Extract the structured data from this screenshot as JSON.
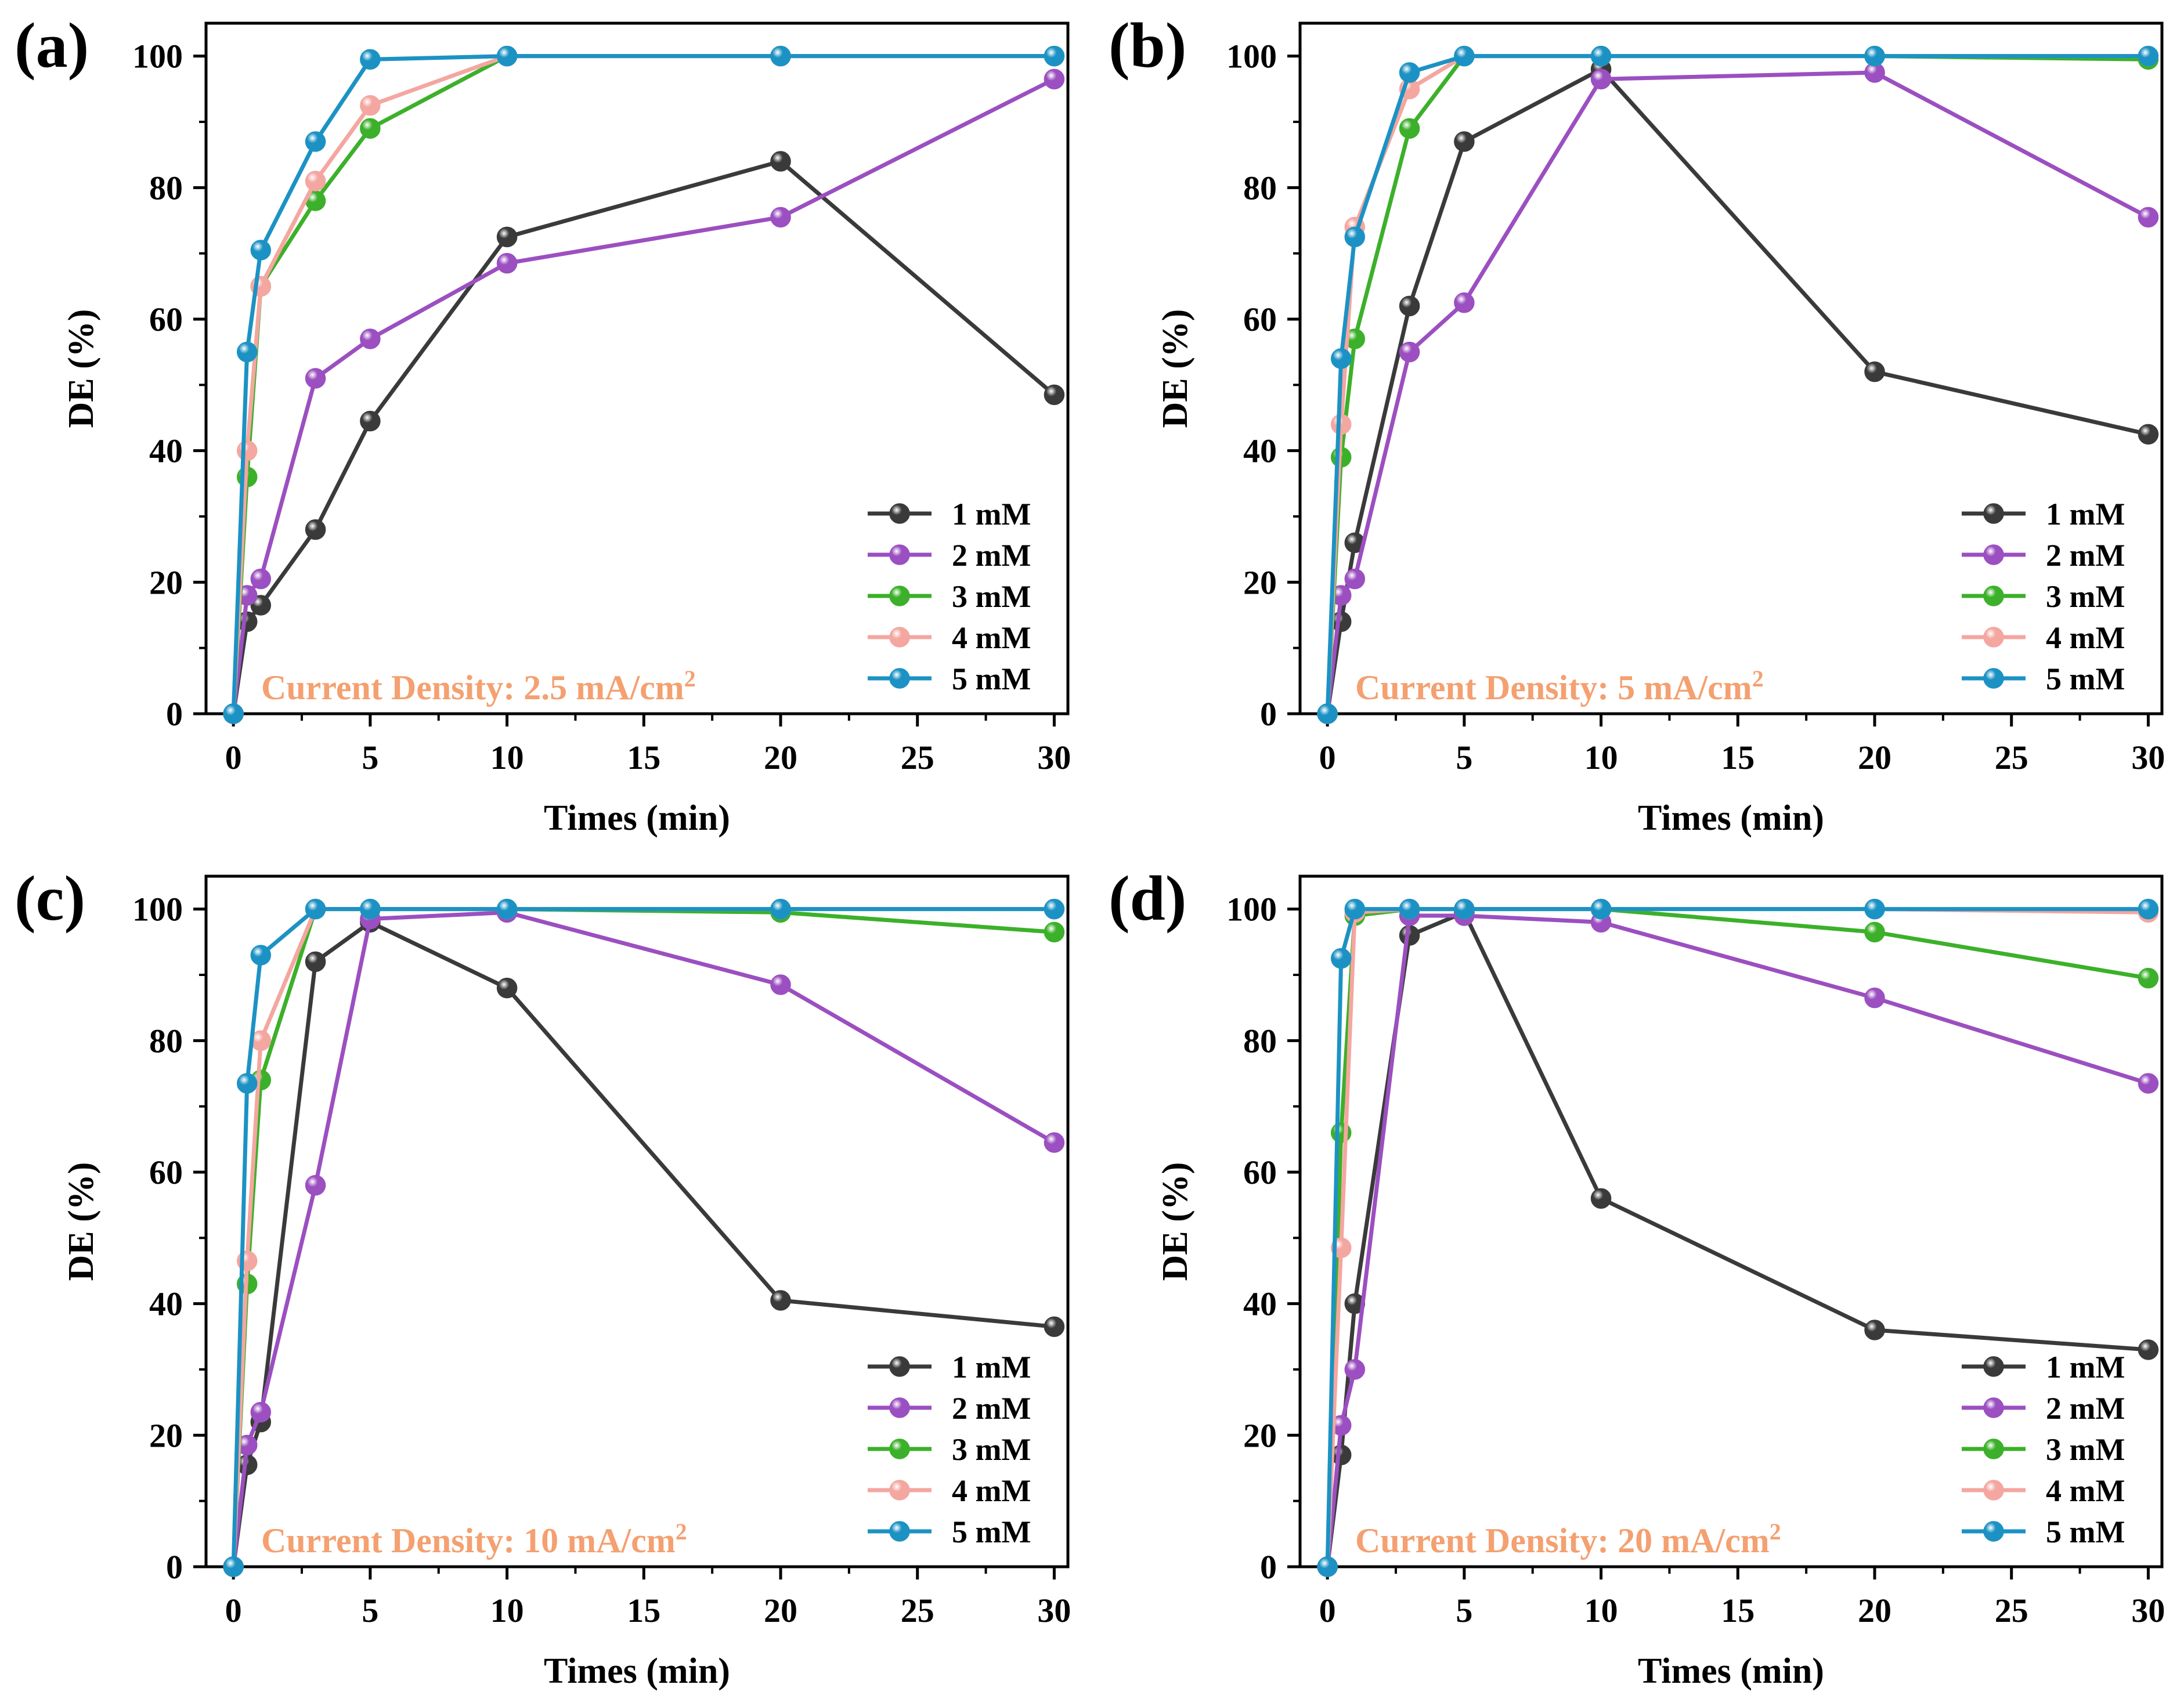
{
  "colors": {
    "1 mM": "#3a3a3a",
    "2 mM": "#9b4fc0",
    "3 mM": "#3cb02a",
    "4 mM": "#f4a6a0",
    "5 mM": "#1c92c4",
    "annotation": "#f4a070"
  },
  "chart_data": [
    {
      "type": "line",
      "panel": "(a)",
      "annotation": "Current Density: 2.5 mA/cm",
      "annotation_sup": "2",
      "xlabel": "Times (min)",
      "ylabel": "DE (%)",
      "xlim": [
        -1,
        30.5
      ],
      "ylim": [
        0,
        105
      ],
      "xticks": [
        0,
        5,
        10,
        15,
        20,
        25,
        30
      ],
      "yticks": [
        0,
        20,
        40,
        60,
        80,
        100
      ],
      "x": [
        0,
        0.5,
        1,
        3,
        5,
        10,
        20,
        30
      ],
      "series": [
        {
          "name": "1 mM",
          "values": [
            0,
            14,
            16.5,
            28,
            44.5,
            72.5,
            84,
            48.5
          ]
        },
        {
          "name": "2 mM",
          "values": [
            0,
            18,
            20.5,
            51,
            57,
            68.5,
            75.5,
            96.5
          ]
        },
        {
          "name": "3 mM",
          "values": [
            0,
            36,
            65,
            78,
            89,
            100,
            100,
            100
          ]
        },
        {
          "name": "4 mM",
          "values": [
            0,
            40,
            65,
            81,
            92.5,
            100,
            100,
            100
          ]
        },
        {
          "name": "5 mM",
          "values": [
            0,
            55,
            70.5,
            87,
            99.5,
            100,
            100,
            100
          ]
        }
      ]
    },
    {
      "type": "line",
      "panel": "(b)",
      "annotation": "Current Density: 5 mA/cm",
      "annotation_sup": "2",
      "xlabel": "Times (min)",
      "ylabel": "DE (%)",
      "xlim": [
        -1,
        30.5
      ],
      "ylim": [
        0,
        105
      ],
      "xticks": [
        0,
        5,
        10,
        15,
        20,
        25,
        30
      ],
      "yticks": [
        0,
        20,
        40,
        60,
        80,
        100
      ],
      "x": [
        0,
        0.5,
        1,
        3,
        5,
        10,
        20,
        30
      ],
      "series": [
        {
          "name": "1 mM",
          "values": [
            0,
            14,
            26,
            62,
            87,
            98,
            52,
            42.5
          ]
        },
        {
          "name": "2 mM",
          "values": [
            0,
            18,
            20.5,
            55,
            62.5,
            96.5,
            97.5,
            75.5
          ]
        },
        {
          "name": "3 mM",
          "values": [
            0,
            39,
            57,
            89,
            100,
            100,
            100,
            99.5
          ]
        },
        {
          "name": "4 mM",
          "values": [
            0,
            44,
            74,
            95,
            100,
            100,
            100,
            100
          ]
        },
        {
          "name": "5 mM",
          "values": [
            0,
            54,
            72.5,
            97.5,
            100,
            100,
            100,
            100
          ]
        }
      ]
    },
    {
      "type": "line",
      "panel": "(c)",
      "annotation": "Current Density: 10 mA/cm",
      "annotation_sup": "2",
      "xlabel": "Times (min)",
      "ylabel": "DE (%)",
      "xlim": [
        -1,
        30.5
      ],
      "ylim": [
        0,
        105
      ],
      "xticks": [
        0,
        5,
        10,
        15,
        20,
        25,
        30
      ],
      "yticks": [
        0,
        20,
        40,
        60,
        80,
        100
      ],
      "x": [
        0,
        0.5,
        1,
        3,
        5,
        10,
        20,
        30
      ],
      "series": [
        {
          "name": "1 mM",
          "values": [
            0,
            15.5,
            22,
            92,
            98,
            88,
            40.5,
            36.5
          ]
        },
        {
          "name": "2 mM",
          "values": [
            0,
            18.5,
            23.5,
            58,
            98.5,
            99.5,
            88.5,
            64.5
          ]
        },
        {
          "name": "3 mM",
          "values": [
            0,
            43,
            74,
            100,
            100,
            100,
            99.5,
            96.5
          ]
        },
        {
          "name": "4 mM",
          "values": [
            0,
            46.5,
            80,
            100,
            100,
            100,
            100,
            100
          ]
        },
        {
          "name": "5 mM",
          "values": [
            0,
            73.5,
            93,
            100,
            100,
            100,
            100,
            100
          ]
        }
      ]
    },
    {
      "type": "line",
      "panel": "(d)",
      "annotation": "Current Density: 20 mA/cm",
      "annotation_sup": "2",
      "xlabel": "Times (min)",
      "ylabel": "DE (%)",
      "xlim": [
        -1,
        30.5
      ],
      "ylim": [
        0,
        105
      ],
      "xticks": [
        0,
        5,
        10,
        15,
        20,
        25,
        30
      ],
      "yticks": [
        0,
        20,
        40,
        60,
        80,
        100
      ],
      "x": [
        0,
        0.5,
        1,
        3,
        5,
        10,
        20,
        30
      ],
      "series": [
        {
          "name": "1 mM",
          "values": [
            0,
            17,
            40,
            96,
            99.5,
            56,
            36,
            33
          ]
        },
        {
          "name": "2 mM",
          "values": [
            0,
            21.5,
            30,
            99,
            99,
            98,
            86.5,
            73.5
          ]
        },
        {
          "name": "3 mM",
          "values": [
            0,
            66,
            99,
            100,
            100,
            100,
            96.5,
            89.5
          ]
        },
        {
          "name": "4 mM",
          "values": [
            0,
            48.5,
            99.5,
            100,
            100,
            100,
            100,
            99.5
          ]
        },
        {
          "name": "5 mM",
          "values": [
            0,
            92.5,
            100,
            100,
            100,
            100,
            100,
            100
          ]
        }
      ]
    }
  ]
}
